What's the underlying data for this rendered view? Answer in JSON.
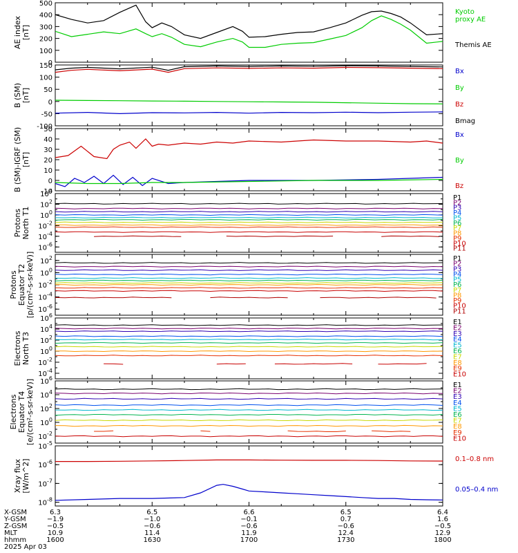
{
  "chart_data": [
    {
      "type": "line",
      "id": "ae",
      "ylabel_lines": [
        "AE index",
        "[nT]"
      ],
      "yticks": [
        0,
        100,
        200,
        300,
        400,
        500
      ],
      "ylim": [
        0,
        500
      ],
      "series": [
        {
          "name": "Kyoto proxy AE",
          "legend_lines": [
            "Kyoto",
            "proxy AE"
          ],
          "color": "#00cc00",
          "x": [
            1600,
            1605,
            1610,
            1615,
            1620,
            1625,
            1628,
            1630,
            1633,
            1636,
            1640,
            1645,
            1650,
            1655,
            1658,
            1700,
            1705,
            1710,
            1715,
            1720,
            1725,
            1730,
            1735,
            1738,
            1741,
            1744,
            1747,
            1750,
            1755,
            1800
          ],
          "values": [
            260,
            215,
            235,
            255,
            240,
            280,
            240,
            215,
            240,
            210,
            150,
            130,
            170,
            200,
            170,
            125,
            125,
            150,
            160,
            165,
            195,
            225,
            290,
            350,
            390,
            360,
            320,
            270,
            160,
            175
          ]
        },
        {
          "name": "Themis AE",
          "color": "#000000",
          "x": [
            1600,
            1605,
            1610,
            1615,
            1620,
            1625,
            1628,
            1630,
            1633,
            1636,
            1640,
            1645,
            1650,
            1655,
            1658,
            1700,
            1705,
            1710,
            1715,
            1720,
            1725,
            1730,
            1735,
            1738,
            1741,
            1744,
            1747,
            1750,
            1755,
            1800
          ],
          "values": [
            400,
            360,
            330,
            350,
            420,
            480,
            340,
            290,
            330,
            300,
            230,
            200,
            250,
            300,
            260,
            210,
            215,
            235,
            250,
            255,
            290,
            330,
            395,
            425,
            430,
            410,
            380,
            330,
            230,
            240
          ]
        }
      ]
    },
    {
      "type": "line",
      "id": "bsm",
      "ylabel_lines": [
        "B (SM)",
        "[nT]"
      ],
      "yticks": [
        -100,
        -50,
        0,
        50,
        100,
        150
      ],
      "ylim": [
        -100,
        150
      ],
      "series": [
        {
          "name": "Bx",
          "color": "#0000cc",
          "x": [
            1600,
            1610,
            1620,
            1630,
            1640,
            1650,
            1700,
            1710,
            1720,
            1730,
            1740,
            1750,
            1800
          ],
          "values": [
            -48,
            -45,
            -50,
            -46,
            -47,
            -45,
            -48,
            -45,
            -46,
            -44,
            -46,
            -44,
            -43
          ]
        },
        {
          "name": "By",
          "color": "#00cc00",
          "x": [
            1600,
            1610,
            1620,
            1630,
            1640,
            1650,
            1700,
            1710,
            1720,
            1730,
            1740,
            1750,
            1800
          ],
          "values": [
            5,
            4,
            3,
            2,
            1,
            0,
            -1,
            -2,
            -3,
            -5,
            -7,
            -9,
            -10
          ]
        },
        {
          "name": "Bz",
          "color": "#cc0000",
          "x": [
            1600,
            1605,
            1610,
            1620,
            1630,
            1635,
            1640,
            1650,
            1700,
            1710,
            1720,
            1730,
            1740,
            1750,
            1800
          ],
          "values": [
            120,
            128,
            132,
            126,
            133,
            120,
            135,
            138,
            136,
            138,
            137,
            140,
            139,
            137,
            135
          ]
        },
        {
          "name": "Bmag",
          "color": "#000000",
          "x": [
            1600,
            1605,
            1610,
            1620,
            1630,
            1635,
            1640,
            1650,
            1700,
            1710,
            1720,
            1730,
            1740,
            1750,
            1800
          ],
          "values": [
            130,
            137,
            140,
            134,
            141,
            128,
            143,
            146,
            144,
            146,
            145,
            147,
            146,
            144,
            142
          ]
        }
      ]
    },
    {
      "type": "line",
      "id": "bigrf",
      "ylabel_lines": [
        "B (SM)-IGRF (SM)",
        "[nT]"
      ],
      "yticks": [
        -10,
        0,
        10,
        20,
        30,
        40,
        50
      ],
      "ylim": [
        -10,
        50
      ],
      "series": [
        {
          "name": "Bx",
          "color": "#0000cc",
          "x": [
            1600,
            1603,
            1606,
            1609,
            1612,
            1615,
            1618,
            1621,
            1624,
            1627,
            1630,
            1635,
            1640,
            1700,
            1720,
            1740,
            1800
          ],
          "values": [
            -3,
            -6,
            2,
            -2,
            4,
            -3,
            5,
            -4,
            3,
            -5,
            2,
            -3,
            -2,
            0,
            0,
            1,
            3
          ]
        },
        {
          "name": "By",
          "color": "#00cc00",
          "x": [
            1600,
            1610,
            1620,
            1630,
            1640,
            1700,
            1720,
            1740,
            1800
          ],
          "values": [
            -2,
            -3,
            -3,
            -2,
            -2,
            -1,
            0,
            0,
            1
          ]
        },
        {
          "name": "Bz",
          "color": "#cc0000",
          "x": [
            1600,
            1604,
            1608,
            1612,
            1616,
            1618,
            1620,
            1623,
            1625,
            1628,
            1630,
            1632,
            1635,
            1640,
            1645,
            1650,
            1655,
            1700,
            1710,
            1720,
            1730,
            1740,
            1750,
            1755,
            1800
          ],
          "values": [
            22,
            24,
            33,
            23,
            21,
            30,
            34,
            37,
            31,
            40,
            33,
            35,
            34,
            36,
            35,
            37,
            36,
            38,
            37,
            39,
            38,
            38,
            37,
            38,
            36
          ]
        }
      ]
    },
    {
      "type": "line",
      "id": "p-north",
      "log": true,
      "ylabel_lines": [
        "Protons",
        "North T1"
      ],
      "yticks_exp": [
        4,
        2,
        0,
        -2,
        -4,
        -6
      ],
      "ylim_exp": [
        -7,
        4
      ],
      "legend": [
        "P1",
        "P2",
        "P3",
        "P4",
        "P5",
        "P6",
        "P7",
        "P8",
        "P9",
        "P10",
        "P11"
      ],
      "colors": [
        "#000000",
        "#7a006e",
        "#2e00b3",
        "#0050ee",
        "#00b6d0",
        "#00b450",
        "#c8d800",
        "#ff9800",
        "#e63000",
        "#c80000",
        "#b00000"
      ],
      "levels_exp": [
        2.1,
        1.2,
        0.6,
        0.0,
        -0.5,
        -0.9,
        -1.4,
        -1.9,
        -2.3,
        -3.2,
        -4.0
      ],
      "gap_series": 10,
      "gap_x": [
        [
          1612,
          1640
        ],
        [
          1653,
          1728
        ],
        [
          1741,
          1800
        ]
      ]
    },
    {
      "type": "line",
      "id": "p-eq",
      "log": true,
      "ylabel_lines": [
        "Protons",
        "Equator T2",
        "[p/(cm²-s-sr-keV)]"
      ],
      "yticks_exp": [
        2,
        0,
        -2,
        -4,
        -6
      ],
      "ylim_exp": [
        -7,
        3
      ],
      "legend": [
        "P1",
        "P2",
        "P3",
        "P4",
        "P5",
        "P6",
        "P7",
        "P8",
        "P9",
        "P10",
        "P11"
      ],
      "colors": [
        "#000000",
        "#7a006e",
        "#2e00b3",
        "#0050ee",
        "#00b6d0",
        "#00b450",
        "#c8d800",
        "#ff9800",
        "#e63000",
        "#c80000",
        "#b00000"
      ],
      "levels_exp": [
        1.6,
        1.0,
        0.4,
        -0.3,
        -0.9,
        -1.3,
        -1.7,
        -2.0,
        -2.5,
        -3.0,
        -4.1
      ],
      "gap_series": 10,
      "gap_x": [
        [
          1600,
          1638
        ],
        [
          1648,
          1712
        ],
        [
          1722,
          1800
        ]
      ]
    },
    {
      "type": "line",
      "id": "e-north",
      "log": true,
      "ylabel_lines": [
        "Electrons",
        "North T3"
      ],
      "yticks_exp": [
        6,
        4,
        2,
        0,
        -2,
        -4
      ],
      "ylim_exp": [
        -5,
        6
      ],
      "legend": [
        "E1",
        "E2",
        "E3",
        "E4",
        "E5",
        "E6",
        "E7",
        "E8",
        "E9",
        "E10"
      ],
      "colors": [
        "#000000",
        "#7a006e",
        "#2e00b3",
        "#0050ee",
        "#00b6d0",
        "#00b450",
        "#c8d800",
        "#ff9800",
        "#e63000",
        "#c80000"
      ],
      "levels_exp": [
        4.7,
        4.1,
        3.6,
        2.7,
        2.1,
        1.5,
        0.8,
        0.0,
        -0.8,
        -2.3
      ],
      "gap_series": 9,
      "gap_x": [
        [
          1615,
          1622
        ],
        [
          1650,
          1660
        ],
        [
          1668,
          1734
        ],
        [
          1740,
          1757
        ]
      ]
    },
    {
      "type": "line",
      "id": "e-eq",
      "log": true,
      "ylabel_lines": [
        "Electrons",
        "Equator T4",
        "[e/(cm²-s-sr-keV)]"
      ],
      "yticks_exp": [
        6,
        4,
        2,
        0,
        -2
      ],
      "ylim_exp": [
        -3,
        6
      ],
      "legend": [
        "E1",
        "E2",
        "E3",
        "E4",
        "E5",
        "E6",
        "E7",
        "E8",
        "E9",
        "E10"
      ],
      "colors": [
        "#000000",
        "#7a006e",
        "#2e00b3",
        "#0050ee",
        "#00b6d0",
        "#00b450",
        "#c8d800",
        "#ff9800",
        "#e63000",
        "#c80000"
      ],
      "levels_exp": [
        4.8,
        4.2,
        3.4,
        2.5,
        1.8,
        1.1,
        0.3,
        -0.5,
        -1.3,
        -2.0
      ],
      "gap_series": 8,
      "gap_x": [
        [
          1612,
          1618
        ],
        [
          1645,
          1650
        ],
        [
          1658,
          1700
        ],
        [
          1712,
          1730
        ],
        [
          1738,
          1752
        ]
      ]
    },
    {
      "type": "line",
      "id": "xray",
      "log": true,
      "ylabel_lines": [
        "Xray flux",
        "[W/m^2]"
      ],
      "yticks_exp": [
        -5,
        -6,
        -7,
        -8
      ],
      "ylim_exp": [
        -8.2,
        -5
      ],
      "series": [
        {
          "name": "0.1–0.8 nm",
          "color": "#cc0000",
          "x": [
            1600,
            1610,
            1620,
            1630,
            1640,
            1650,
            1700,
            1710,
            1720,
            1730,
            1740,
            1750,
            1800
          ],
          "exp": [
            -5.83,
            -5.83,
            -5.82,
            -5.8,
            -5.78,
            -5.75,
            -5.75,
            -5.76,
            -5.77,
            -5.77,
            -5.78,
            -5.8,
            -5.81
          ]
        },
        {
          "name": "0.05–0.4 nm",
          "color": "#0000cc",
          "x": [
            1600,
            1610,
            1620,
            1630,
            1640,
            1645,
            1650,
            1652,
            1655,
            1658,
            1700,
            1705,
            1710,
            1715,
            1720,
            1725,
            1730,
            1735,
            1740,
            1745,
            1750,
            1755,
            1800
          ],
          "exp": [
            -7.9,
            -7.85,
            -7.8,
            -7.8,
            -7.75,
            -7.5,
            -7.1,
            -7.05,
            -7.15,
            -7.3,
            -7.4,
            -7.45,
            -7.5,
            -7.55,
            -7.6,
            -7.65,
            -7.7,
            -7.75,
            -7.8,
            -7.8,
            -7.85,
            -7.87,
            -7.88
          ]
        }
      ]
    }
  ],
  "x_axis": {
    "tick_times": [
      1600,
      1630,
      1700,
      1730,
      1800
    ],
    "rows": [
      {
        "label": "X-GSM",
        "values": [
          "6.3",
          "6.5",
          "6.6",
          "6.5",
          "6.4"
        ]
      },
      {
        "label": "Y-GSM",
        "values": [
          "−1.9",
          "−1.0",
          "−0.1",
          "0.7",
          "1.6"
        ]
      },
      {
        "label": "Z-GSM",
        "values": [
          "−0.5",
          "−0.6",
          "−0.6",
          "−0.6",
          "−0.5"
        ]
      },
      {
        "label": "MLT",
        "values": [
          "10.9",
          "11.4",
          "11.9",
          "12.4",
          "12.9"
        ]
      },
      {
        "label": "hhmm",
        "values": [
          "1600",
          "1630",
          "1700",
          "1730",
          "1800"
        ]
      }
    ],
    "date": "2025 Apr 03"
  }
}
